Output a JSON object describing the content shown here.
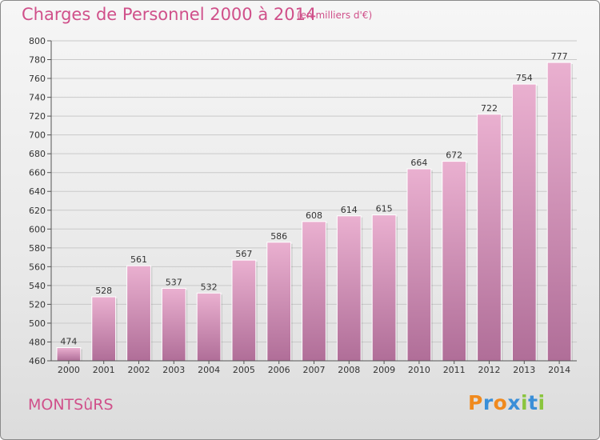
{
  "chart_data": {
    "type": "bar",
    "title": "Charges de Personnel 2000 à 2014",
    "subtitle": "(en milliers d'€)",
    "categories": [
      "2000",
      "2001",
      "2002",
      "2003",
      "2004",
      "2005",
      "2006",
      "2007",
      "2008",
      "2009",
      "2010",
      "2011",
      "2012",
      "2013",
      "2014"
    ],
    "values": [
      474,
      528,
      561,
      537,
      532,
      567,
      586,
      608,
      614,
      615,
      664,
      672,
      722,
      754,
      777
    ],
    "ylim": [
      460,
      800
    ],
    "yticks": [
      460,
      480,
      500,
      520,
      540,
      560,
      580,
      600,
      620,
      640,
      660,
      680,
      700,
      720,
      740,
      760,
      780,
      800
    ],
    "grid": true,
    "colors": {
      "bar_top": "#eab0d0",
      "bar_bottom": "#b06e98",
      "text": "#d0508a"
    }
  },
  "footer": {
    "town": "MONTSûRS",
    "logo": [
      {
        "ch": "P",
        "color": "#f08a1e"
      },
      {
        "ch": "r",
        "color": "#3a8fd8"
      },
      {
        "ch": "o",
        "color": "#f08a1e"
      },
      {
        "ch": "x",
        "color": "#3a8fd8"
      },
      {
        "ch": "i",
        "color": "#8ac53e"
      },
      {
        "ch": "t",
        "color": "#3a8fd8"
      },
      {
        "ch": "i",
        "color": "#8ac53e"
      }
    ]
  }
}
